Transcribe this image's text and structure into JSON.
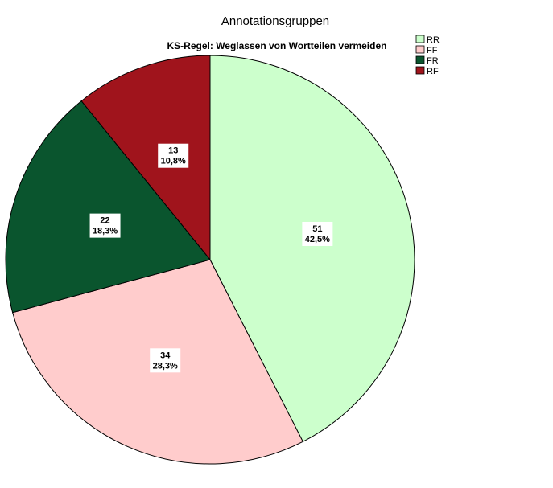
{
  "chart_data": {
    "type": "pie",
    "title": "Annotationsgruppen",
    "subtitle": "KS-Regel: Weglassen von Wortteilen vermeiden",
    "legend_position": "top-right",
    "slices": [
      {
        "name": "RR",
        "value": 51,
        "percent_label": "42,5%",
        "color": "#ccffcc"
      },
      {
        "name": "FF",
        "value": 34,
        "percent_label": "28,3%",
        "color": "#ffcccc"
      },
      {
        "name": "FR",
        "value": 22,
        "percent_label": "18,3%",
        "color": "#0a552e"
      },
      {
        "name": "RF",
        "value": 13,
        "percent_label": "10,8%",
        "color": "#a0141c"
      }
    ]
  }
}
